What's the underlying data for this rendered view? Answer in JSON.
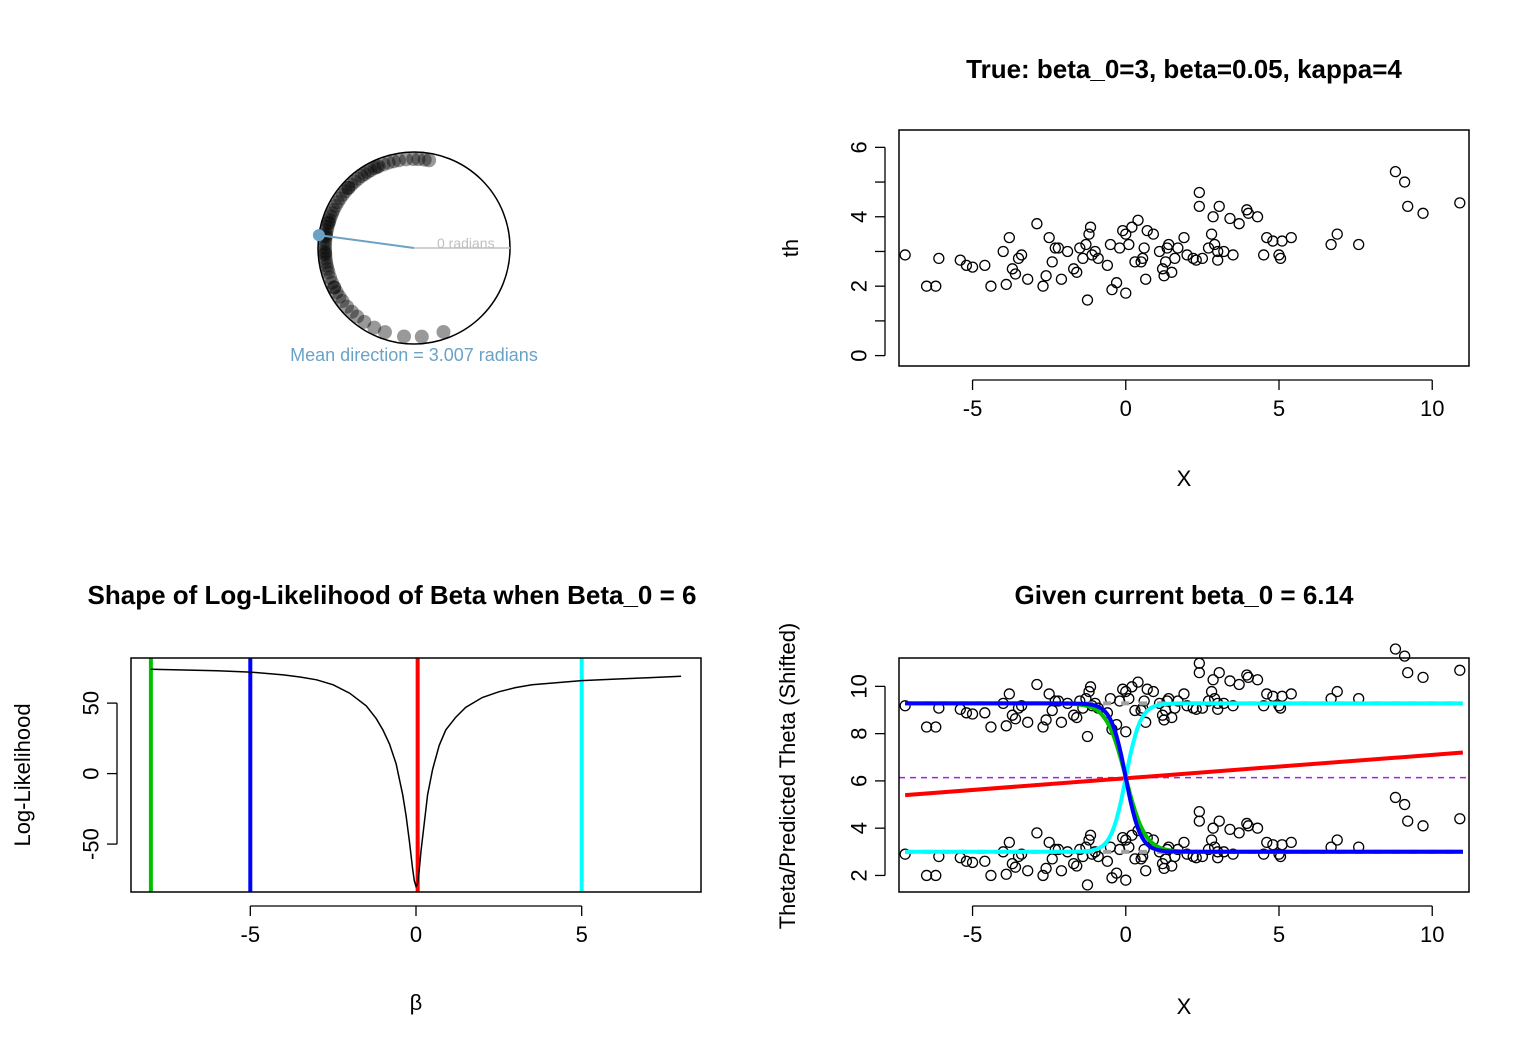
{
  "colors": {
    "circle_points": "#000000",
    "mean_direction": "#6AA2C6",
    "zero_ref": "#C0C0C0",
    "green": "#00C000",
    "blue": "#0000FF",
    "red": "#FF0000",
    "cyan": "#00FFFF",
    "purple_dashed": "#A020F0",
    "gray_dashed": "#A0A0A0"
  },
  "chart_data": [
    {
      "type": "circular",
      "zero_label": "0 radians",
      "mean_label": "Mean direction = 3.007 radians",
      "mean_direction": 3.007,
      "angles": [
        1.4,
        1.45,
        1.52,
        1.58,
        1.66,
        1.74,
        1.8,
        1.86,
        1.92,
        1.98,
        2.03,
        2.08,
        2.12,
        2.16,
        2.2,
        2.25,
        2.3,
        2.35,
        2.4,
        2.45,
        2.5,
        2.55,
        2.6,
        2.65,
        2.7,
        2.74,
        2.78,
        2.82,
        2.86,
        2.9,
        2.94,
        2.98,
        3.02,
        3.06,
        3.1,
        3.14,
        3.18,
        3.22,
        3.26,
        3.3,
        3.34,
        3.38,
        3.42,
        3.48,
        3.54,
        3.6,
        3.66,
        3.72,
        3.78,
        3.86,
        3.94,
        4.02,
        4.12,
        4.25,
        4.38,
        4.6,
        4.8,
        5.05,
        2.0,
        2.4,
        2.85,
        3.0,
        3.2,
        3.6
      ]
    },
    {
      "type": "scatter",
      "title": "True: beta_0=3, beta=0.05, kappa=4",
      "xlabel": "X",
      "ylabel": "th",
      "xlim": [
        -7.4,
        11.2
      ],
      "ylim": [
        -0.3,
        6.5
      ],
      "xticks": [
        -5,
        0,
        5,
        10
      ],
      "yticks": [
        0,
        2,
        4,
        6
      ],
      "points": [
        [
          -7.2,
          2.9
        ],
        [
          -6.5,
          2.0
        ],
        [
          -6.2,
          2.0
        ],
        [
          -6.1,
          2.8
        ],
        [
          -5.4,
          2.75
        ],
        [
          -5.2,
          2.6
        ],
        [
          -5.0,
          2.55
        ],
        [
          -4.6,
          2.6
        ],
        [
          -4.4,
          2.0
        ],
        [
          -4.0,
          3.0
        ],
        [
          -3.9,
          2.05
        ],
        [
          -3.8,
          3.4
        ],
        [
          -3.7,
          2.5
        ],
        [
          -3.6,
          2.35
        ],
        [
          -3.5,
          2.8
        ],
        [
          -3.4,
          2.9
        ],
        [
          -3.2,
          2.2
        ],
        [
          -2.9,
          3.8
        ],
        [
          -2.7,
          2.0
        ],
        [
          -2.6,
          2.3
        ],
        [
          -2.5,
          3.4
        ],
        [
          -2.4,
          2.7
        ],
        [
          -2.3,
          3.1
        ],
        [
          -2.2,
          3.1
        ],
        [
          -2.1,
          2.2
        ],
        [
          -1.9,
          3.0
        ],
        [
          -1.7,
          2.5
        ],
        [
          -1.6,
          2.4
        ],
        [
          -1.5,
          3.1
        ],
        [
          -1.4,
          2.8
        ],
        [
          -1.3,
          3.2
        ],
        [
          -1.25,
          1.6
        ],
        [
          -1.2,
          3.5
        ],
        [
          -1.15,
          3.7
        ],
        [
          -1.1,
          2.9
        ],
        [
          -1.0,
          3.0
        ],
        [
          -0.9,
          2.8
        ],
        [
          -0.6,
          2.6
        ],
        [
          -0.5,
          3.2
        ],
        [
          -0.45,
          1.9
        ],
        [
          -0.3,
          2.1
        ],
        [
          -0.2,
          3.1
        ],
        [
          -0.1,
          3.6
        ],
        [
          0.0,
          3.5
        ],
        [
          0.0,
          1.8
        ],
        [
          0.1,
          3.2
        ],
        [
          0.2,
          3.7
        ],
        [
          0.3,
          2.7
        ],
        [
          0.4,
          3.9
        ],
        [
          0.5,
          2.7
        ],
        [
          0.55,
          2.8
        ],
        [
          0.6,
          3.1
        ],
        [
          0.65,
          2.2
        ],
        [
          0.7,
          3.6
        ],
        [
          0.9,
          3.5
        ],
        [
          1.1,
          3.0
        ],
        [
          1.2,
          2.5
        ],
        [
          1.25,
          2.3
        ],
        [
          1.3,
          2.7
        ],
        [
          1.35,
          3.1
        ],
        [
          1.4,
          3.2
        ],
        [
          1.5,
          2.4
        ],
        [
          1.6,
          2.8
        ],
        [
          1.7,
          3.1
        ],
        [
          1.9,
          3.4
        ],
        [
          2.0,
          2.9
        ],
        [
          2.2,
          2.8
        ],
        [
          2.3,
          2.75
        ],
        [
          2.4,
          4.7
        ],
        [
          2.4,
          4.3
        ],
        [
          2.5,
          2.8
        ],
        [
          2.7,
          3.1
        ],
        [
          2.8,
          3.5
        ],
        [
          2.85,
          4.0
        ],
        [
          2.9,
          3.2
        ],
        [
          3.0,
          2.75
        ],
        [
          3.0,
          3.0
        ],
        [
          3.05,
          4.3
        ],
        [
          3.2,
          3.0
        ],
        [
          3.4,
          3.95
        ],
        [
          3.5,
          2.9
        ],
        [
          3.7,
          3.8
        ],
        [
          3.95,
          4.2
        ],
        [
          4.0,
          4.1
        ],
        [
          4.3,
          4.0
        ],
        [
          4.5,
          2.9
        ],
        [
          4.6,
          3.4
        ],
        [
          4.8,
          3.3
        ],
        [
          5.0,
          2.9
        ],
        [
          5.05,
          2.8
        ],
        [
          5.1,
          3.3
        ],
        [
          5.4,
          3.4
        ],
        [
          6.7,
          3.2
        ],
        [
          6.9,
          3.5
        ],
        [
          7.6,
          3.2
        ],
        [
          8.8,
          5.3
        ],
        [
          9.1,
          5.0
        ],
        [
          9.2,
          4.3
        ],
        [
          9.7,
          4.1
        ],
        [
          10.9,
          4.4
        ]
      ]
    },
    {
      "type": "line",
      "title": "Shape of Log-Likelihood of Beta when Beta_0 = 6",
      "xlabel": "β",
      "ylabel": "Log-Likelihood",
      "xlim": [
        -8.6,
        8.6
      ],
      "ylim": [
        -84,
        82
      ],
      "xticks": [
        -5,
        0,
        5
      ],
      "yticks": [
        -50,
        0,
        50
      ],
      "series": [
        {
          "x": [
            -8.0,
            -7.0,
            -6.0,
            -5.0,
            -4.0,
            -3.5,
            -3.0,
            -2.5,
            -2.0,
            -1.5,
            -1.2,
            -1.0,
            -0.8,
            -0.6,
            -0.4,
            -0.3,
            -0.2,
            -0.1,
            -0.05,
            0.0,
            0.05,
            0.1,
            0.15,
            0.25,
            0.35,
            0.5,
            0.7,
            0.9,
            1.2,
            1.5,
            2.0,
            2.5,
            3.0,
            3.5,
            4.0,
            5.0,
            6.0,
            7.0,
            8.0
          ],
          "y": [
            74,
            73.5,
            73,
            72,
            70,
            68.5,
            66.5,
            63,
            57,
            48,
            39,
            31,
            21,
            7,
            -15,
            -30,
            -48,
            -68,
            -76,
            -80,
            -78,
            -68,
            -55,
            -35,
            -15,
            3,
            20,
            31,
            40,
            47,
            54,
            58,
            61,
            63,
            64,
            66,
            67,
            68,
            69
          ]
        }
      ],
      "vlines": [
        {
          "x": -8.0,
          "color": "green"
        },
        {
          "x": -5.0,
          "color": "blue"
        },
        {
          "x": 0.05,
          "color": "red"
        },
        {
          "x": 5.0,
          "color": "cyan"
        }
      ]
    },
    {
      "type": "scatter",
      "title": "Given current beta_0 = 6.14",
      "xlabel": "X",
      "ylabel": "Theta/Predicted Theta (Shifted)",
      "xlim": [
        -7.4,
        11.2
      ],
      "ylim": [
        1.3,
        11.2
      ],
      "xticks": [
        -5,
        0,
        5,
        10
      ],
      "yticks": [
        2,
        4,
        6,
        8,
        10
      ],
      "hline": 6.14,
      "gray_levels": [
        3.0,
        9.28
      ]
    }
  ]
}
